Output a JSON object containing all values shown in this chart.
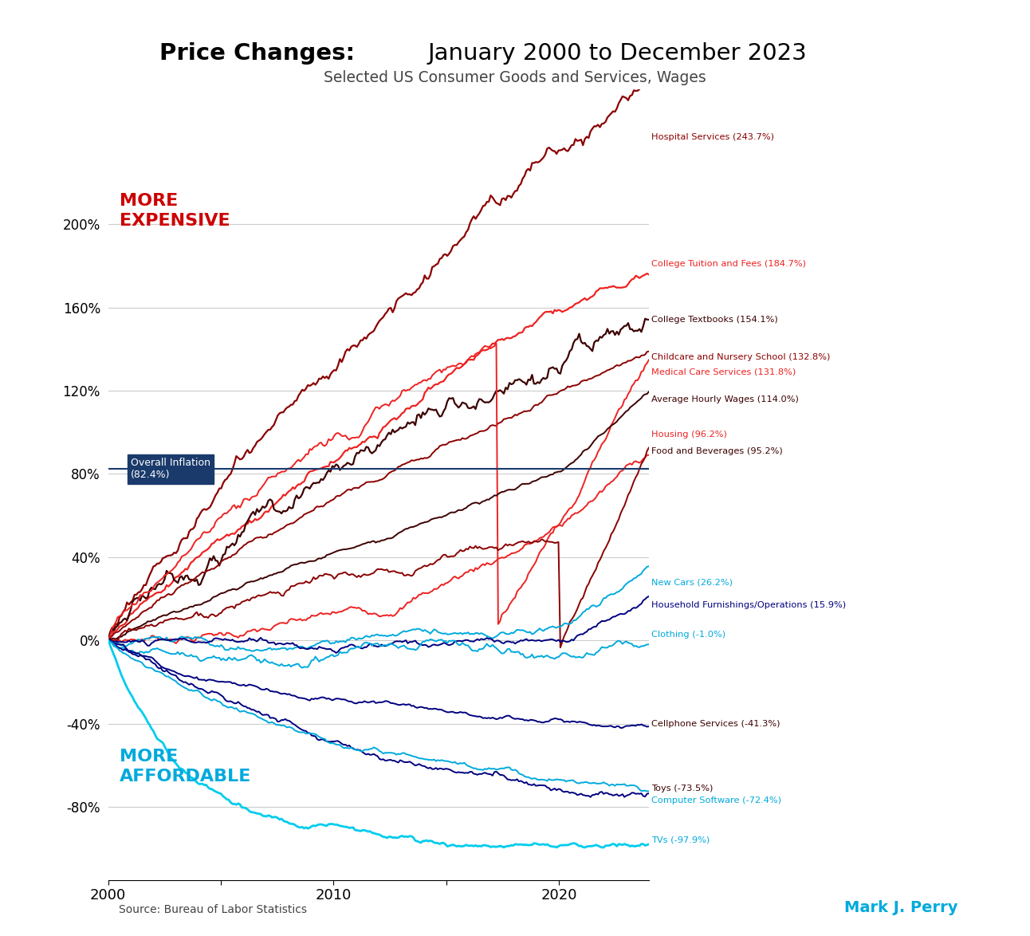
{
  "title_bold": "Price Changes:",
  "title_normal": "  January 2000 to December 2023",
  "subtitle": "Selected US Consumer Goods and Services, Wages",
  "source": "Source: Bureau of Labor Statistics",
  "author": "Mark J. Perry",
  "xlim": [
    2000,
    2024
  ],
  "ylim": [
    -115,
    265
  ],
  "yticks": [
    -80,
    -40,
    0,
    40,
    80,
    120,
    160,
    200
  ],
  "xticks": [
    2000,
    2005,
    2010,
    2015,
    2020
  ],
  "xticklabels": [
    "2000",
    "",
    "2010",
    "",
    "2020"
  ],
  "overall_inflation_pct": 82.4,
  "more_expensive_label": "MORE\nEXPENSIVE",
  "more_affordable_label": "MORE\nAFFORDABLE",
  "series": [
    {
      "name": "Hospital Services",
      "final": 243.7,
      "color": "#8B0000",
      "lw": 1.6
    },
    {
      "name": "College Tuition and Fees",
      "final": 184.7,
      "color": "#EE2222",
      "lw": 1.6
    },
    {
      "name": "College Textbooks",
      "final": 154.1,
      "color": "#3D0000",
      "lw": 1.6
    },
    {
      "name": "Childcare and Nursery School",
      "final": 132.8,
      "color": "#8B0000",
      "lw": 1.4
    },
    {
      "name": "Medical Care Services",
      "final": 131.8,
      "color": "#EE2222",
      "lw": 1.4
    },
    {
      "name": "Average Hourly Wages",
      "final": 114.0,
      "color": "#3D0000",
      "lw": 1.4
    },
    {
      "name": "Housing",
      "final": 96.2,
      "color": "#EE2222",
      "lw": 1.4
    },
    {
      "name": "Food and Beverages",
      "final": 95.2,
      "color": "#8B0000",
      "lw": 1.4
    },
    {
      "name": "New Cars",
      "final": 26.2,
      "color": "#00AADD",
      "lw": 1.4
    },
    {
      "name": "Household Furnishings/Operations",
      "final": 15.9,
      "color": "#000080",
      "lw": 1.4
    },
    {
      "name": "Clothing",
      "final": -1.0,
      "color": "#00AADD",
      "lw": 1.4
    },
    {
      "name": "Cellphone Services",
      "final": -41.3,
      "color": "#000080",
      "lw": 1.4
    },
    {
      "name": "Toys",
      "final": -73.5,
      "color": "#000080",
      "lw": 1.4
    },
    {
      "name": "Computer Software",
      "final": -72.4,
      "color": "#00AADD",
      "lw": 1.4
    },
    {
      "name": "TVs",
      "final": -97.9,
      "color": "#00CCEE",
      "lw": 2.0
    }
  ],
  "label_y_positions": {
    "Hospital Services (243.7%)": 242,
    "College Tuition and Fees (184.7%)": 181,
    "College Textbooks (154.1%)": 154,
    "Childcare and Nursery School (132.8%)": 136,
    "Medical Care Services (131.8%)": 129,
    "Average Hourly Wages (114.0%)": 116,
    "Housing (96.2%)": 99,
    "Food and Beverages (95.2%)": 91,
    "New Cars (26.2%)": 28,
    "Household Furnishings/Operations (15.9%)": 17,
    "Clothing (-1.0%)": 3,
    "Cellphone Services (-41.3%)": -40,
    "Toys (-73.5%)": -71,
    "Computer Software (-72.4%)": -77,
    "TVs (-97.9%)": -96
  },
  "label_colors": {
    "Hospital Services (243.7%)": "#8B0000",
    "College Tuition and Fees (184.7%)": "#EE2222",
    "College Textbooks (154.1%)": "#3D0000",
    "Childcare and Nursery School (132.8%)": "#8B0000",
    "Medical Care Services (131.8%)": "#EE2222",
    "Average Hourly Wages (114.0%)": "#3D0000",
    "Housing (96.2%)": "#EE2222",
    "Food and Beverages (95.2%)": "#3D0000",
    "New Cars (26.2%)": "#00AADD",
    "Household Furnishings/Operations (15.9%)": "#000080",
    "Clothing (-1.0%)": "#00AADD",
    "Cellphone Services (-41.3%)": "#3D0000",
    "Toys (-73.5%)": "#3D0000",
    "Computer Software (-72.4%)": "#00AADD",
    "TVs (-97.9%)": "#00AADD"
  },
  "bg_color": "#ffffff"
}
